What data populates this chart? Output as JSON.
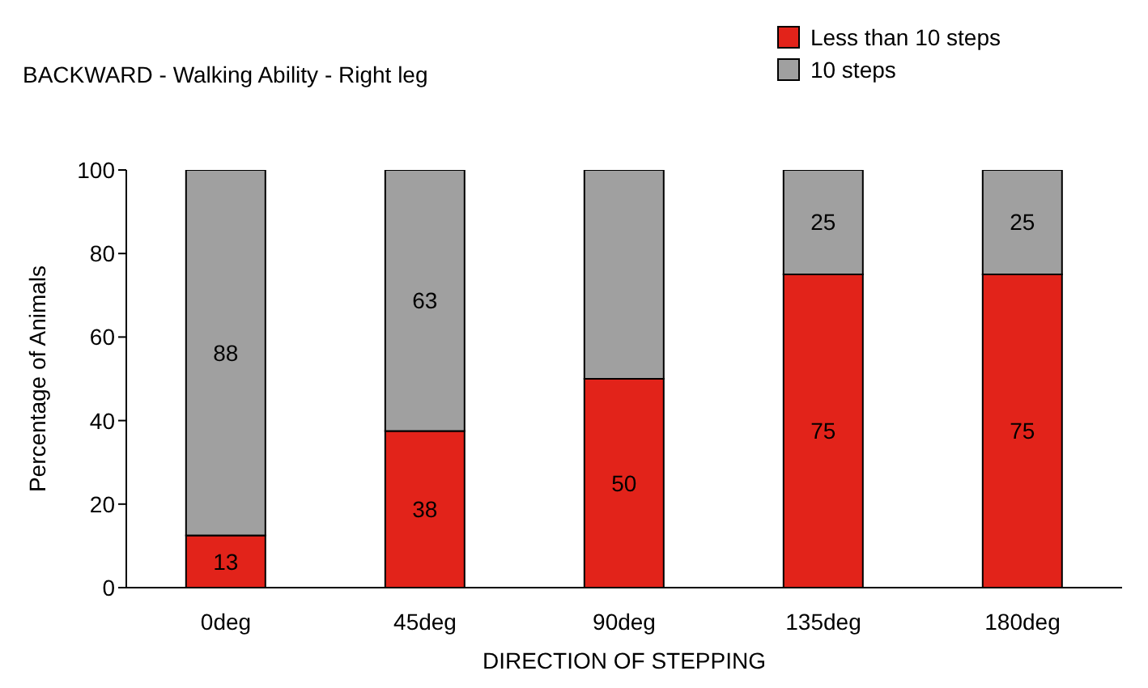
{
  "chart_data": {
    "type": "bar",
    "stacked": true,
    "title": "BACKWARD - Walking Ability - Right leg",
    "xlabel": "DIRECTION OF STEPPING",
    "ylabel": "Percentage of Animals",
    "categories": [
      "0deg",
      "45deg",
      "90deg",
      "135deg",
      "180deg"
    ],
    "series": [
      {
        "name": "Less than 10 steps",
        "color": "#e2231a",
        "values": [
          12.5,
          37.5,
          50,
          75,
          75
        ],
        "value_labels": [
          "13",
          "38",
          "50",
          "75",
          "75"
        ]
      },
      {
        "name": "10 steps",
        "color": "#a0a0a0",
        "values": [
          87.5,
          62.5,
          50,
          25,
          25
        ],
        "value_labels": [
          "88",
          "63",
          null,
          "25",
          "25"
        ]
      }
    ],
    "ylim": [
      0,
      100
    ],
    "yticks": [
      0,
      20,
      40,
      60,
      80,
      100
    ],
    "grid": false,
    "legend": "top right"
  }
}
